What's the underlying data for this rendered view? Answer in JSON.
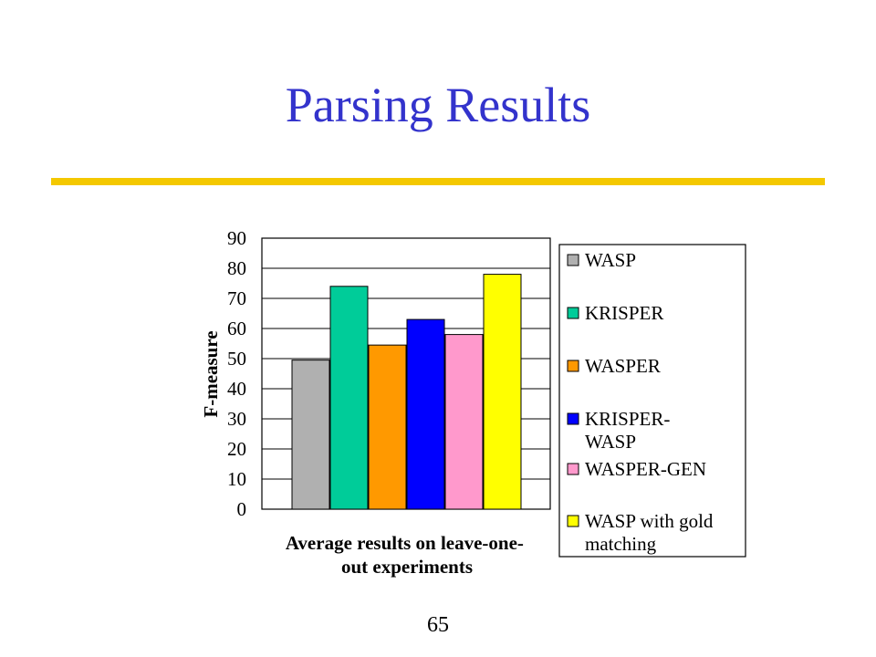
{
  "slide": {
    "title": "Parsing Results",
    "page_number": "65",
    "title_color": "#3333cc",
    "rule_color": "#f4c800"
  },
  "chart_data": {
    "type": "bar",
    "title": "",
    "ylabel": "F-measure",
    "xlabel": "Average results on leave-one-out experiments",
    "xlabel_lines": [
      "Average results on leave-one-",
      "out experiments"
    ],
    "ylim": [
      0,
      90
    ],
    "yticks": [
      0,
      10,
      20,
      30,
      40,
      50,
      60,
      70,
      80,
      90
    ],
    "grid": true,
    "legend_position": "right",
    "series": [
      {
        "name": "WASP",
        "name_lines": [
          "WASP"
        ],
        "value": 49.5,
        "color": "#b0b0b0"
      },
      {
        "name": "KRISPER",
        "name_lines": [
          "KRISPER"
        ],
        "value": 74,
        "color": "#00cc99"
      },
      {
        "name": "WASPER",
        "name_lines": [
          "WASPER"
        ],
        "value": 54.5,
        "color": "#ff9900"
      },
      {
        "name": "KRISPER-WASP",
        "name_lines": [
          "KRISPER-",
          "WASP"
        ],
        "value": 63,
        "color": "#0000ff"
      },
      {
        "name": "WASPER-GEN",
        "name_lines": [
          "WASPER-GEN"
        ],
        "value": 58,
        "color": "#ff99cc"
      },
      {
        "name": "WASP with gold matching",
        "name_lines": [
          "WASP with gold",
          "matching"
        ],
        "value": 78,
        "color": "#ffff00"
      }
    ]
  }
}
